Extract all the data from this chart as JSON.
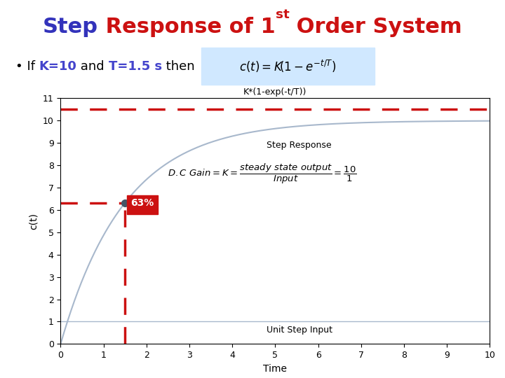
{
  "K": 10,
  "T": 1.5,
  "t_max": 10,
  "title_plot": "K*(1-exp(-t/T))",
  "xlabel": "Time",
  "ylabel": "c(t)",
  "xlim": [
    0,
    10
  ],
  "ylim": [
    0,
    11
  ],
  "yticks": [
    0,
    1,
    2,
    3,
    4,
    5,
    6,
    7,
    8,
    9,
    10,
    11
  ],
  "xticks": [
    0,
    1,
    2,
    3,
    4,
    5,
    6,
    7,
    8,
    9,
    10
  ],
  "step_response_color": "#a8b8cc",
  "unit_step_color": "#a8b8cc",
  "dashed_color": "#cc1111",
  "dot_color": "#445566",
  "box_color": "#cc1111",
  "box_text": "63%",
  "box_text_color": "white",
  "tau_x": 1.5,
  "dashed_y": 10.5,
  "step_response_label": "Step Response",
  "unit_step_label": "Unit Step Input",
  "title_color_step": "#3333bb",
  "title_color_response": "#cc1111",
  "title_fontsize": 22,
  "subtitle_fontsize": 13,
  "subtitle_K_color": "#4444cc",
  "subtitle_T_color": "#4444cc",
  "formula_bg_color": "#d0e8ff"
}
